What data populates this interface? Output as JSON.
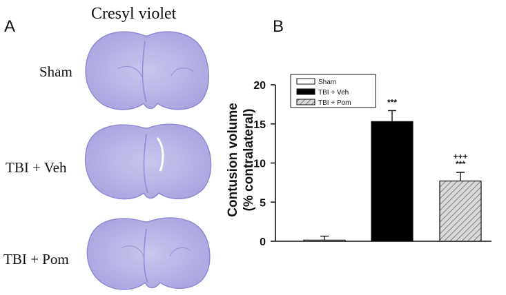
{
  "panel_a": {
    "letter": "A",
    "stain_title": "Cresyl violet",
    "rows": [
      {
        "label": "Sham"
      },
      {
        "label": "TBI + Veh"
      },
      {
        "label": "TBI + Pom"
      }
    ],
    "stain_color": "#b9b6e6",
    "stain_dark": "#8f8ad2"
  },
  "panel_b": {
    "letter": "B"
  },
  "chart_data": {
    "type": "bar",
    "categories": [
      "Sham",
      "TBI + Veh",
      "TBI + Pom"
    ],
    "values": [
      0.15,
      15.3,
      7.7
    ],
    "errors": [
      0.5,
      1.4,
      1.1
    ],
    "annotations": [
      "",
      "***",
      "+++\n***"
    ],
    "fills": [
      "white",
      "black",
      "hatched"
    ],
    "ylabel_line1": "Contusion volume",
    "ylabel_line2": "(% contralateral)",
    "ylim": [
      0,
      20
    ],
    "yticks": [
      "0",
      "5",
      "10",
      "15",
      "20"
    ],
    "legend": {
      "placement": "top-left",
      "entries": [
        "Sham",
        "TBI + Veh",
        "TBI + Pom"
      ]
    }
  }
}
